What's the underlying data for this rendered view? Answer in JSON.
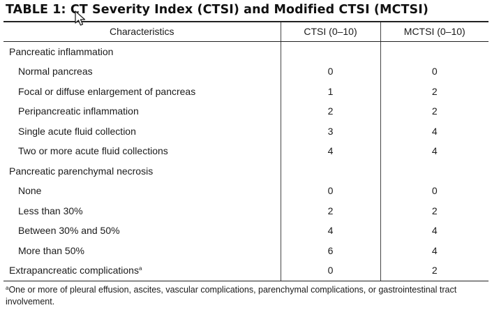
{
  "title": "TABLE 1: CT Severity Index (CTSI) and Modified CTSI (MCTSI)",
  "table": {
    "headers": [
      "Characteristics",
      "CTSI (0–10)",
      "MCTSI (0–10)"
    ],
    "rows": [
      {
        "label": "Pancreatic inflammation",
        "ctsi": "",
        "mctsi": "",
        "kind": "category",
        "sup": ""
      },
      {
        "label": "Normal pancreas",
        "ctsi": "0",
        "mctsi": "0",
        "kind": "sub",
        "sup": ""
      },
      {
        "label": "Focal or diffuse enlargement of pancreas",
        "ctsi": "1",
        "mctsi": "2",
        "kind": "sub",
        "sup": ""
      },
      {
        "label": "Peripancreatic inflammation",
        "ctsi": "2",
        "mctsi": "2",
        "kind": "sub",
        "sup": ""
      },
      {
        "label": "Single acute fluid collection",
        "ctsi": "3",
        "mctsi": "4",
        "kind": "sub",
        "sup": ""
      },
      {
        "label": "Two or more acute fluid collections",
        "ctsi": "4",
        "mctsi": "4",
        "kind": "sub",
        "sup": ""
      },
      {
        "label": "Pancreatic parenchymal necrosis",
        "ctsi": "",
        "mctsi": "",
        "kind": "category",
        "sup": ""
      },
      {
        "label": "None",
        "ctsi": "0",
        "mctsi": "0",
        "kind": "sub",
        "sup": ""
      },
      {
        "label": "Less than 30%",
        "ctsi": "2",
        "mctsi": "2",
        "kind": "sub",
        "sup": ""
      },
      {
        "label": "Between 30% and 50%",
        "ctsi": "4",
        "mctsi": "4",
        "kind": "sub",
        "sup": ""
      },
      {
        "label": "More than 50%",
        "ctsi": "6",
        "mctsi": "4",
        "kind": "sub",
        "sup": ""
      },
      {
        "label": "Extrapancreatic complications",
        "ctsi": "0",
        "mctsi": "2",
        "kind": "category",
        "sup": "a"
      }
    ]
  },
  "footnote": {
    "marker": "a",
    "text": "One or more of pleural effusion, ascites, vascular complications, parenchymal complications, or gastrointestinal tract involvement."
  },
  "cursor": {
    "icon": "mouse-pointer-icon"
  }
}
